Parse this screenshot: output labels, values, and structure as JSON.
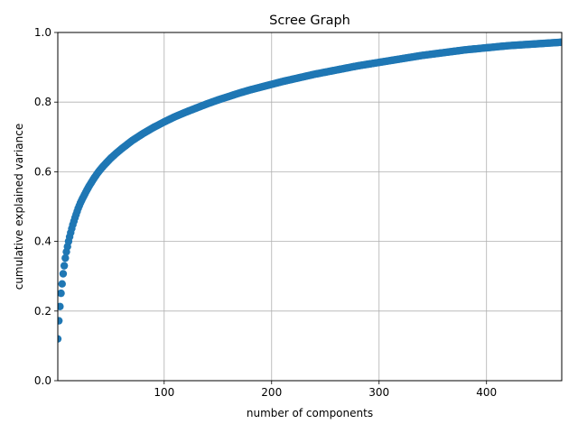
{
  "chart_data": {
    "type": "scatter",
    "title": "Scree Graph",
    "xlabel": "number of components",
    "ylabel": "cumulative explained variance",
    "xlim": [
      1,
      470
    ],
    "ylim": [
      0,
      1.0
    ],
    "grid": true,
    "marker_color": "#1f77b4",
    "x_ticks": [
      100,
      200,
      300,
      400
    ],
    "x_tick_labels": [
      "100",
      "200",
      "300",
      "400"
    ],
    "y_ticks": [
      0,
      0.2,
      0.4,
      0.6,
      0.8,
      1.0
    ],
    "y_tick_labels": [
      "0.0",
      "0.2",
      "0.4",
      "0.6",
      "0.8",
      "1.0"
    ],
    "series": [
      {
        "x": [
          1,
          2,
          3,
          4,
          5,
          6,
          7,
          8,
          9,
          10,
          11,
          12,
          13,
          14,
          15,
          16,
          17,
          18,
          19,
          20,
          22,
          24,
          26,
          28,
          30,
          32,
          34,
          36,
          38,
          40,
          43,
          46,
          50,
          55,
          60,
          65,
          70,
          75,
          80,
          85,
          90,
          95,
          100,
          110,
          120,
          130,
          140,
          150,
          160,
          170,
          180,
          190,
          200,
          210,
          220,
          230,
          240,
          250,
          260,
          270,
          280,
          290,
          300,
          310,
          320,
          330,
          340,
          350,
          360,
          370,
          380,
          390,
          400,
          410,
          420,
          430,
          440,
          450,
          460,
          470
        ],
        "y": [
          0.12,
          0.172,
          0.213,
          0.251,
          0.278,
          0.307,
          0.33,
          0.352,
          0.37,
          0.385,
          0.4,
          0.413,
          0.425,
          0.437,
          0.448,
          0.458,
          0.468,
          0.477,
          0.486,
          0.495,
          0.51,
          0.523,
          0.535,
          0.547,
          0.558,
          0.568,
          0.578,
          0.587,
          0.596,
          0.604,
          0.615,
          0.625,
          0.638,
          0.652,
          0.665,
          0.677,
          0.689,
          0.699,
          0.709,
          0.718,
          0.727,
          0.735,
          0.743,
          0.758,
          0.771,
          0.783,
          0.795,
          0.806,
          0.816,
          0.826,
          0.835,
          0.843,
          0.851,
          0.859,
          0.866,
          0.873,
          0.88,
          0.886,
          0.892,
          0.898,
          0.904,
          0.909,
          0.914,
          0.919,
          0.924,
          0.929,
          0.934,
          0.938,
          0.942,
          0.946,
          0.95,
          0.953,
          0.956,
          0.959,
          0.962,
          0.964,
          0.966,
          0.968,
          0.97,
          0.972
        ]
      }
    ]
  }
}
